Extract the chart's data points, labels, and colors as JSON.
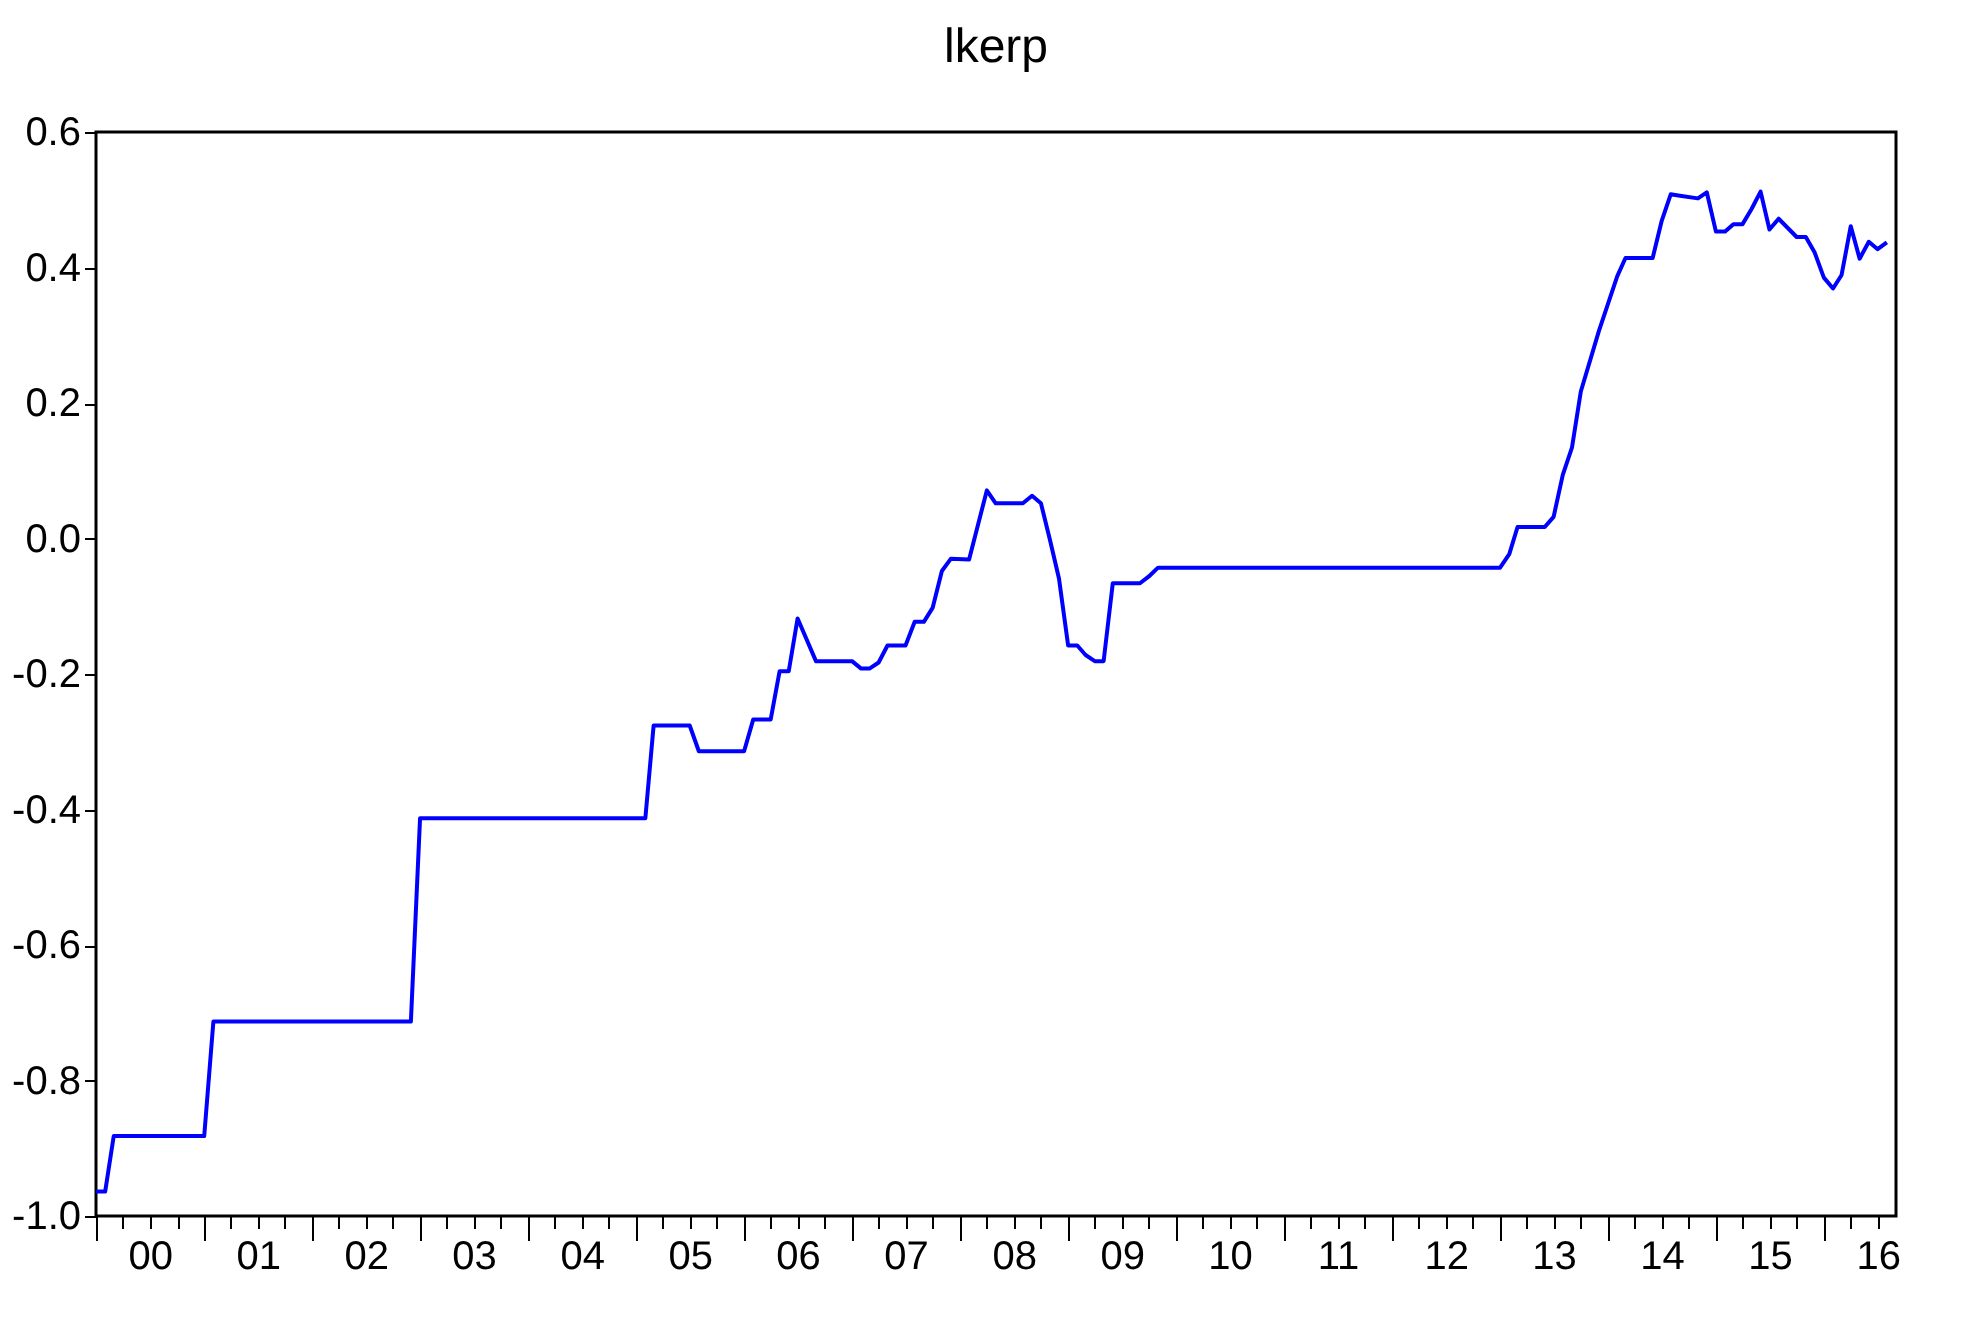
{
  "chart_data": {
    "type": "line",
    "title": "lkerp",
    "grid": false,
    "xlim": [
      "2000-01",
      "2016-09"
    ],
    "xticks": [
      {
        "value": "2000",
        "label": null
      },
      {
        "value": "2000-04",
        "label": null
      },
      {
        "value": "2000-07",
        "label": "00"
      },
      {
        "value": "2000-10",
        "label": null
      },
      {
        "value": "2001",
        "label": null
      },
      {
        "value": "2001-04",
        "label": null
      },
      {
        "value": "2001-07",
        "label": "01"
      },
      {
        "value": "2001-10",
        "label": null
      },
      {
        "value": "2002",
        "label": null
      },
      {
        "value": "2002-04",
        "label": null
      },
      {
        "value": "2002-07",
        "label": "02"
      },
      {
        "value": "2002-10",
        "label": null
      },
      {
        "value": "2003",
        "label": null
      },
      {
        "value": "2003-04",
        "label": null
      },
      {
        "value": "2003-07",
        "label": "03"
      },
      {
        "value": "2003-10",
        "label": null
      },
      {
        "value": "2004",
        "label": null
      },
      {
        "value": "2004-04",
        "label": null
      },
      {
        "value": "2004-07",
        "label": "04"
      },
      {
        "value": "2004-10",
        "label": null
      },
      {
        "value": "2005",
        "label": null
      },
      {
        "value": "2005-04",
        "label": null
      },
      {
        "value": "2005-07",
        "label": "05"
      },
      {
        "value": "2005-10",
        "label": null
      },
      {
        "value": "2006",
        "label": null
      },
      {
        "value": "2006-04",
        "label": null
      },
      {
        "value": "2006-07",
        "label": "06"
      },
      {
        "value": "2006-10",
        "label": null
      },
      {
        "value": "2007",
        "label": null
      },
      {
        "value": "2007-04",
        "label": null
      },
      {
        "value": "2007-07",
        "label": "07"
      },
      {
        "value": "2007-10",
        "label": null
      },
      {
        "value": "2008",
        "label": null
      },
      {
        "value": "2008-04",
        "label": null
      },
      {
        "value": "2008-07",
        "label": "08"
      },
      {
        "value": "2008-10",
        "label": null
      },
      {
        "value": "2009",
        "label": null
      },
      {
        "value": "2009-04",
        "label": null
      },
      {
        "value": "2009-07",
        "label": "09"
      },
      {
        "value": "2009-10",
        "label": null
      },
      {
        "value": "2010",
        "label": null
      },
      {
        "value": "2010-04",
        "label": null
      },
      {
        "value": "2010-07",
        "label": "10"
      },
      {
        "value": "2010-10",
        "label": null
      },
      {
        "value": "2011",
        "label": null
      },
      {
        "value": "2011-04",
        "label": null
      },
      {
        "value": "2011-07",
        "label": "11"
      },
      {
        "value": "2011-10",
        "label": null
      },
      {
        "value": "2012",
        "label": null
      },
      {
        "value": "2012-04",
        "label": null
      },
      {
        "value": "2012-07",
        "label": "12"
      },
      {
        "value": "2012-10",
        "label": null
      },
      {
        "value": "2013",
        "label": null
      },
      {
        "value": "2013-04",
        "label": null
      },
      {
        "value": "2013-07",
        "label": "13"
      },
      {
        "value": "2013-10",
        "label": null
      },
      {
        "value": "2014",
        "label": null
      },
      {
        "value": "2014-04",
        "label": null
      },
      {
        "value": "2014-07",
        "label": "14"
      },
      {
        "value": "2014-10",
        "label": null
      },
      {
        "value": "2015",
        "label": null
      },
      {
        "value": "2015-04",
        "label": null
      },
      {
        "value": "2015-07",
        "label": "15"
      },
      {
        "value": "2015-10",
        "label": null
      },
      {
        "value": "2016",
        "label": null
      },
      {
        "value": "2016-04",
        "label": null
      },
      {
        "value": "2016-07",
        "label": "16"
      }
    ],
    "ylim": [
      -1.0,
      0.6
    ],
    "yticks": [
      {
        "value": -1.0,
        "label": "-1.0"
      },
      -0.8,
      -0.6,
      -0.4,
      -0.2,
      {
        "value": 0,
        "label": "0.0"
      },
      0.2,
      0.4,
      0.6
    ],
    "line_style": "solid",
    "series": [
      {
        "color": "#0000ff",
        "x": [
          "2000-01",
          "2000-02",
          "2000-03",
          "2001-01",
          "2001-02",
          "2002-12",
          "2003-01",
          "2005-02",
          "2005-03",
          "2005-07",
          "2005-08",
          "2006-01",
          "2006-02",
          "2006-04",
          "2006-05",
          "2006-06",
          "2006-07",
          "2006-09",
          "2007-01",
          "2007-02",
          "2007-03",
          "2007-04",
          "2007-05",
          "2007-07",
          "2007-08",
          "2007-09",
          "2007-10",
          "2007-11",
          "2007-12",
          "2008-02",
          "2008-04",
          "2008-05",
          "2008-08",
          "2008-09",
          "2008-10",
          "2008-11",
          "2008-12",
          "2009-01",
          "2009-02",
          "2009-03",
          "2009-04",
          "2009-05",
          "2009-06",
          "2009-09",
          "2009-10",
          "2009-11",
          "2013-01",
          "2013-02",
          "2013-03",
          "2013-06",
          "2013-07",
          "2013-08",
          "2013-09",
          "2013-10",
          "2013-12",
          "2014-02",
          "2014-03",
          "2014-06",
          "2014-07",
          "2014-08",
          "2014-09",
          "2014-11",
          "2014-12",
          "2015-01",
          "2015-02",
          "2015-03",
          "2015-04",
          "2015-05",
          "2015-06",
          "2015-07",
          "2015-08",
          "2015-10",
          "2015-11",
          "2015-12",
          "2016-01",
          "2016-02",
          "2016-03",
          "2016-04",
          "2016-05",
          "2016-06",
          "2016-07",
          "2016-08"
        ],
        "values": [
          -0.964,
          -0.964,
          -0.882,
          -0.882,
          -0.713,
          -0.713,
          -0.413,
          -0.413,
          -0.276,
          -0.276,
          -0.314,
          -0.314,
          -0.267,
          -0.267,
          -0.196,
          -0.196,
          -0.118,
          -0.181,
          -0.181,
          -0.192,
          -0.192,
          -0.183,
          -0.158,
          -0.158,
          -0.123,
          -0.123,
          -0.102,
          -0.048,
          -0.03,
          -0.031,
          0.071,
          0.052,
          0.052,
          0.063,
          0.052,
          -0.003,
          -0.059,
          -0.158,
          -0.158,
          -0.172,
          -0.181,
          -0.181,
          -0.066,
          -0.066,
          -0.056,
          -0.043,
          -0.043,
          -0.023,
          0.017,
          0.017,
          0.032,
          0.094,
          0.134,
          0.217,
          0.306,
          0.387,
          0.414,
          0.414,
          0.468,
          0.508,
          0.506,
          0.502,
          0.511,
          0.453,
          0.453,
          0.464,
          0.464,
          0.486,
          0.512,
          0.456,
          0.472,
          0.445,
          0.445,
          0.422,
          0.385,
          0.369,
          0.389,
          0.461,
          0.413,
          0.438,
          0.427,
          0.437
        ]
      }
    ]
  }
}
